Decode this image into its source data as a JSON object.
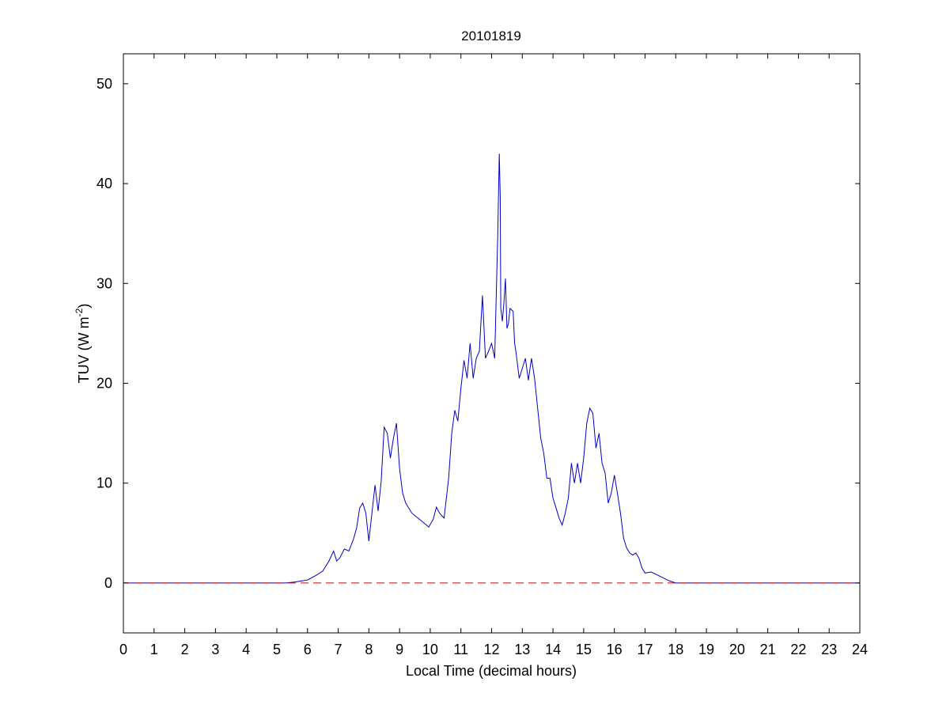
{
  "chart_data": {
    "type": "line",
    "title": "20101819",
    "xlabel": "Local Time (decimal hours)",
    "ylabel_main": "TUV (W m",
    "ylabel_sup": "-2",
    "ylabel_close": ")",
    "xlim": [
      0,
      24
    ],
    "ylim": [
      -5,
      53
    ],
    "xticks": [
      0,
      1,
      2,
      3,
      4,
      5,
      6,
      7,
      8,
      9,
      10,
      11,
      12,
      13,
      14,
      15,
      16,
      17,
      18,
      19,
      20,
      21,
      22,
      23,
      24
    ],
    "yticks": [
      0,
      10,
      20,
      30,
      40,
      50
    ],
    "grid": false,
    "legend": "none",
    "series": [
      {
        "color": "#0000cc",
        "style": "solid",
        "x": [
          0,
          5.3,
          5.6,
          6.0,
          6.3,
          6.5,
          6.7,
          6.85,
          6.95,
          7.05,
          7.2,
          7.35,
          7.5,
          7.6,
          7.7,
          7.8,
          7.9,
          8.0,
          8.1,
          8.2,
          8.3,
          8.4,
          8.5,
          8.6,
          8.7,
          8.8,
          8.9,
          9.0,
          9.1,
          9.2,
          9.4,
          9.6,
          9.8,
          9.95,
          10.1,
          10.2,
          10.3,
          10.45,
          10.6,
          10.7,
          10.8,
          10.9,
          11.0,
          11.1,
          11.2,
          11.3,
          11.4,
          11.5,
          11.6,
          11.7,
          11.8,
          11.9,
          12.0,
          12.1,
          12.2,
          12.25,
          12.28,
          12.3,
          12.35,
          12.4,
          12.45,
          12.5,
          12.55,
          12.6,
          12.7,
          12.75,
          12.8,
          12.9,
          13.0,
          13.1,
          13.2,
          13.3,
          13.4,
          13.5,
          13.6,
          13.7,
          13.8,
          13.9,
          14.0,
          14.1,
          14.2,
          14.3,
          14.4,
          14.5,
          14.6,
          14.7,
          14.8,
          14.9,
          15.0,
          15.1,
          15.2,
          15.3,
          15.4,
          15.5,
          15.6,
          15.7,
          15.8,
          15.9,
          16.0,
          16.1,
          16.2,
          16.3,
          16.4,
          16.5,
          16.6,
          16.7,
          16.8,
          16.9,
          17.0,
          17.2,
          17.4,
          17.6,
          17.8,
          18.0,
          18.2,
          18.4,
          18.6,
          18.8,
          19.0,
          19.2,
          19.5,
          24
        ],
        "y": [
          0,
          0,
          0.1,
          0.3,
          0.8,
          1.2,
          2.2,
          3.2,
          2.2,
          2.5,
          3.4,
          3.2,
          4.4,
          5.5,
          7.5,
          8.0,
          7.0,
          4.2,
          7.0,
          9.8,
          7.2,
          10.2,
          15.6,
          15.0,
          12.5,
          14.5,
          16.0,
          11.5,
          9.0,
          8.0,
          7.0,
          6.5,
          6.0,
          5.6,
          6.4,
          7.6,
          7.0,
          6.5,
          10.5,
          15.0,
          17.3,
          16.2,
          19.5,
          22.3,
          20.5,
          24.0,
          20.5,
          22.5,
          23.2,
          28.8,
          22.5,
          23.2,
          24.0,
          22.5,
          35.0,
          43.0,
          38.7,
          27.5,
          26.2,
          28.0,
          30.5,
          25.5,
          26.0,
          27.5,
          27.2,
          24.0,
          23.0,
          20.5,
          21.5,
          22.5,
          20.3,
          22.5,
          20.5,
          17.5,
          14.5,
          13.0,
          10.5,
          10.5,
          8.5,
          7.5,
          6.5,
          5.8,
          7.0,
          8.5,
          12.0,
          10.0,
          12.0,
          10.0,
          12.5,
          16.0,
          17.5,
          17.0,
          13.5,
          15.0,
          12.0,
          11.0,
          8.0,
          9.0,
          10.8,
          9.0,
          7.0,
          4.5,
          3.5,
          3.0,
          2.8,
          3.0,
          2.5,
          1.5,
          1.0,
          1.1,
          0.8,
          0.5,
          0.2,
          0,
          0,
          0,
          0,
          0,
          0,
          0,
          0,
          0
        ],
        "fixed_pairs": true
      },
      {
        "color": "#cc0000",
        "style": "dashed",
        "x": [
          0,
          24
        ],
        "y": [
          0,
          0
        ]
      }
    ]
  }
}
